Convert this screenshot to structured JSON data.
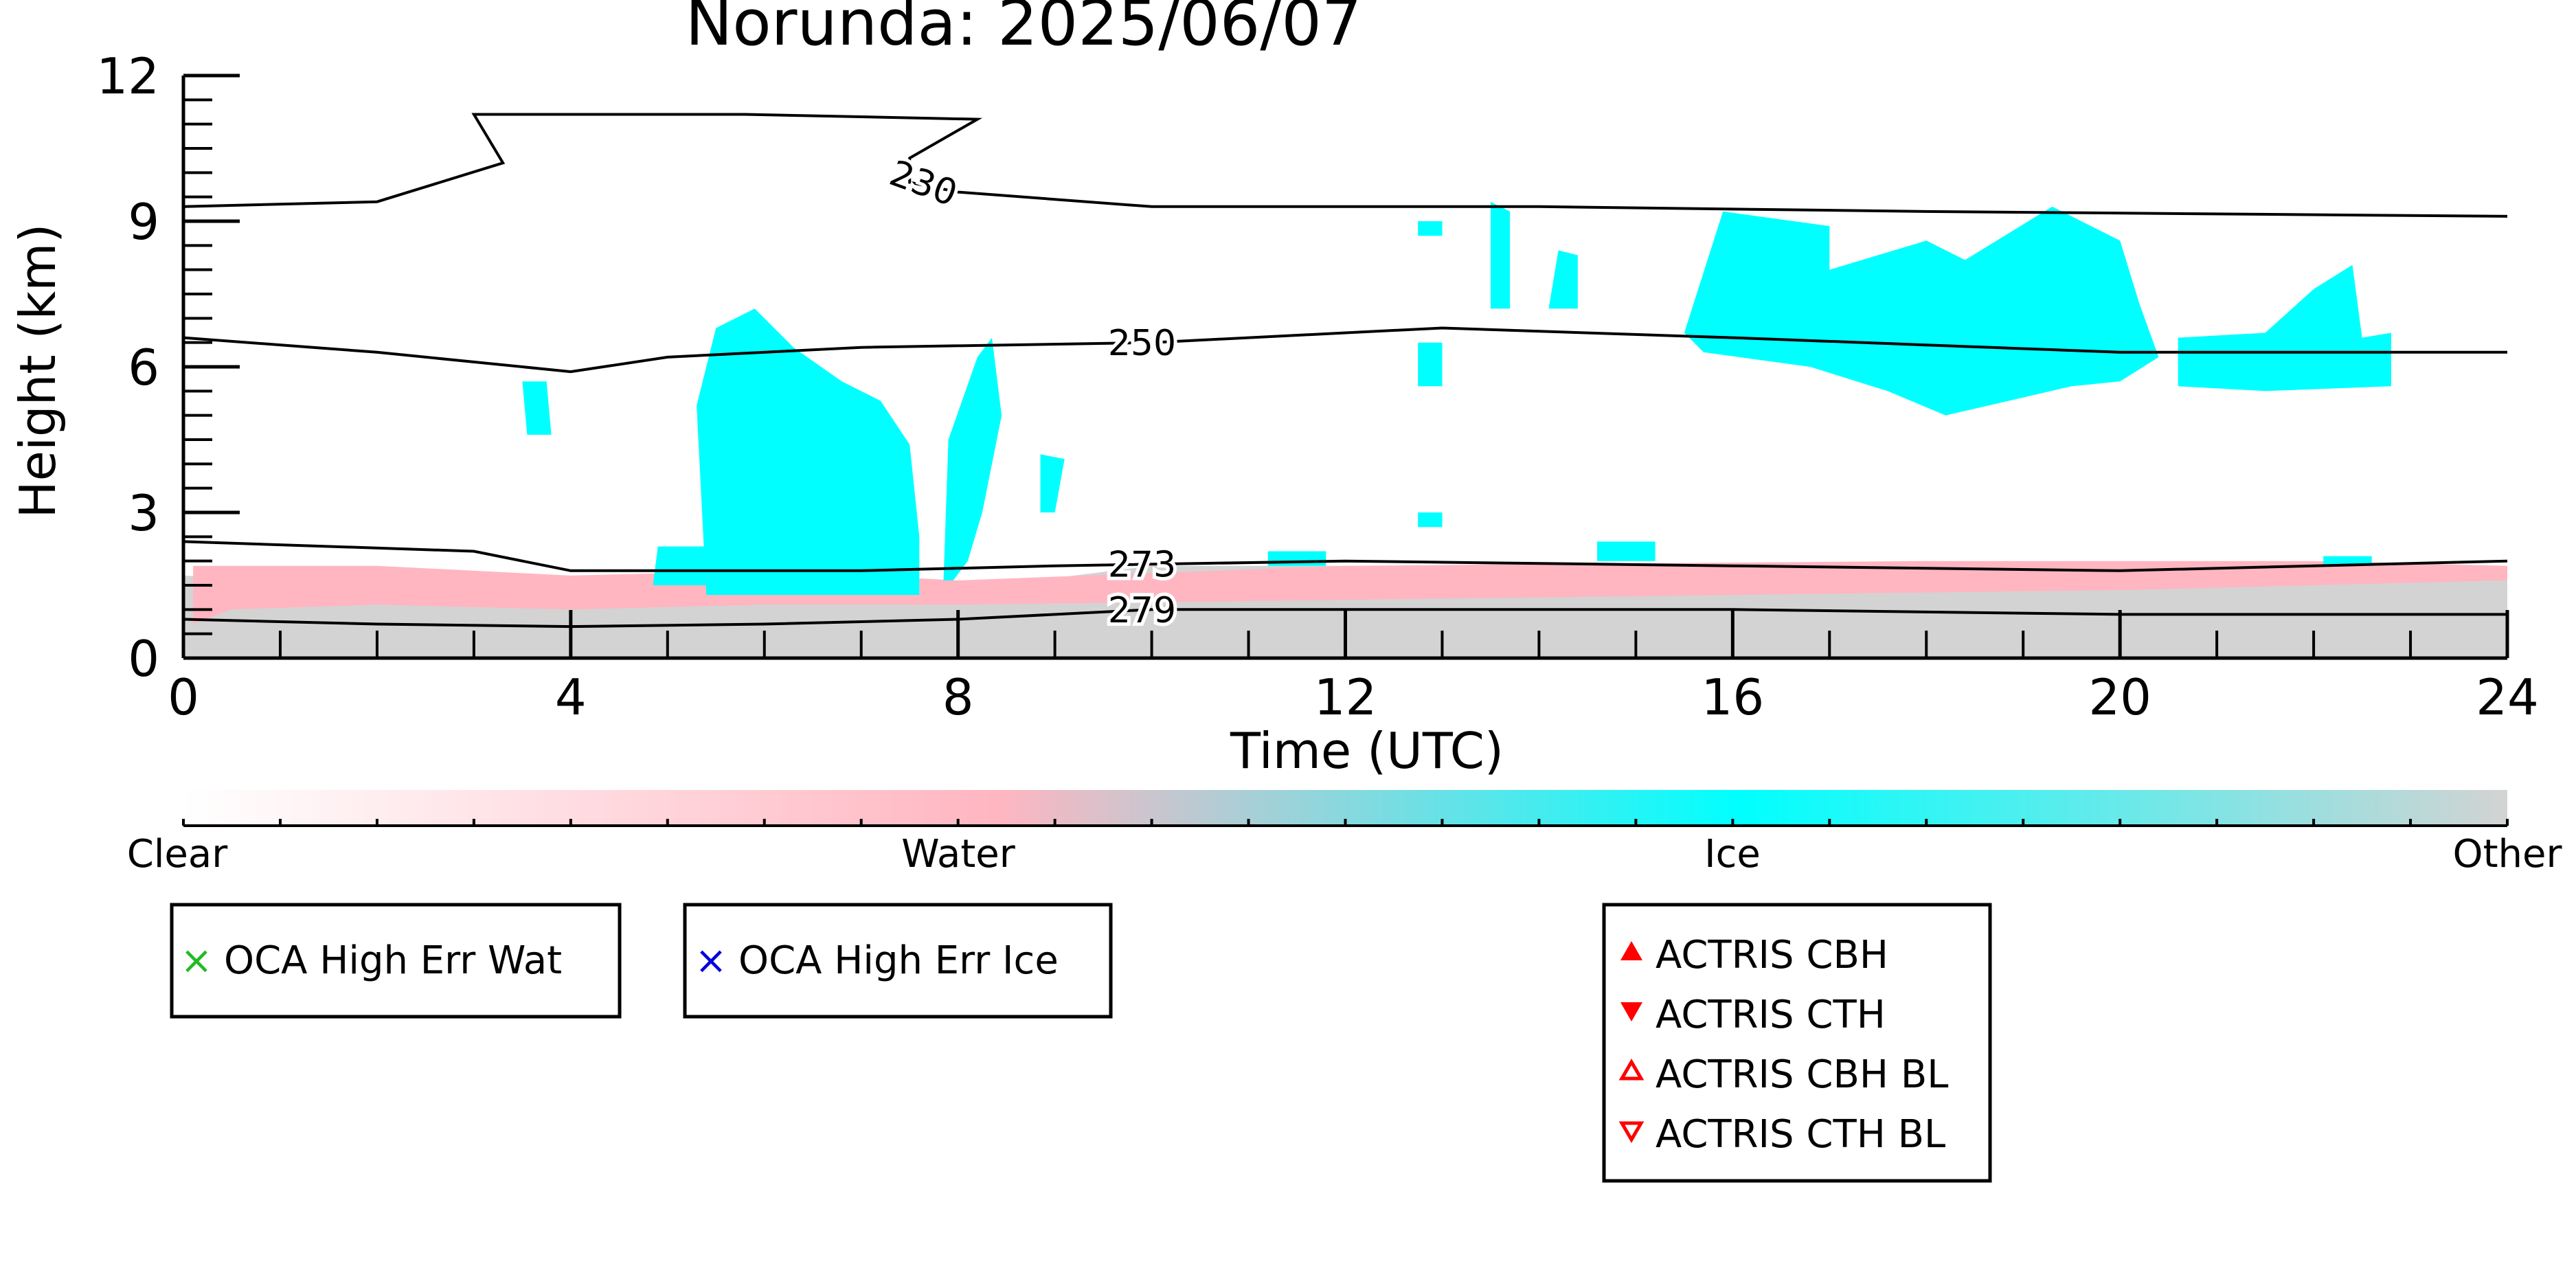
{
  "chart_data": {
    "type": "heatmap",
    "title": "Norunda: 2025/06/07",
    "xlabel": "Time (UTC)",
    "ylabel": "Height (km)",
    "xlim": [
      0,
      24
    ],
    "ylim": [
      0,
      12
    ],
    "x_ticks": [
      0,
      4,
      8,
      12,
      16,
      20,
      24
    ],
    "y_ticks": [
      0,
      3,
      6,
      9,
      12
    ],
    "classes": [
      {
        "name": "Clear",
        "color": "#ffffff"
      },
      {
        "name": "Water",
        "color": "#ffb6c1"
      },
      {
        "name": "Ice",
        "color": "#00ffff"
      },
      {
        "name": "Other",
        "color": "#d3d3d3"
      }
    ],
    "contours": [
      {
        "label": "230",
        "points": [
          [
            0,
            9.3
          ],
          [
            2,
            9.4
          ],
          [
            3.3,
            10.2
          ],
          [
            3,
            11.2
          ],
          [
            5.8,
            11.2
          ],
          [
            8.2,
            11.1
          ],
          [
            7.5,
            10.3
          ],
          [
            7.5,
            9.8
          ],
          [
            8,
            9.6
          ],
          [
            10,
            9.3
          ],
          [
            14,
            9.3
          ],
          [
            18,
            9.2
          ],
          [
            24,
            9.1
          ]
        ]
      },
      {
        "label": "250",
        "points": [
          [
            0,
            6.6
          ],
          [
            2,
            6.3
          ],
          [
            4,
            5.9
          ],
          [
            5,
            6.2
          ],
          [
            7,
            6.4
          ],
          [
            10,
            6.5
          ],
          [
            12,
            6.7
          ],
          [
            13,
            6.8
          ],
          [
            16,
            6.6
          ],
          [
            20,
            6.3
          ],
          [
            24,
            6.3
          ]
        ]
      },
      {
        "label": "273",
        "points": [
          [
            0,
            2.4
          ],
          [
            3,
            2.2
          ],
          [
            4,
            1.8
          ],
          [
            7,
            1.8
          ],
          [
            9,
            1.9
          ],
          [
            12,
            2.0
          ],
          [
            16,
            1.9
          ],
          [
            20,
            1.8
          ],
          [
            24,
            2.0
          ]
        ]
      },
      {
        "label": "279",
        "points": [
          [
            0,
            0.8
          ],
          [
            2,
            0.7
          ],
          [
            4,
            0.65
          ],
          [
            6,
            0.7
          ],
          [
            8,
            0.8
          ],
          [
            10,
            1.0
          ],
          [
            12,
            1.0
          ],
          [
            16,
            1.0
          ],
          [
            20,
            0.9
          ],
          [
            24,
            0.9
          ]
        ]
      }
    ],
    "regions": [
      {
        "class": "Other",
        "points": [
          [
            0,
            0
          ],
          [
            0,
            1.7
          ],
          [
            1,
            1.6
          ],
          [
            4,
            1.5
          ],
          [
            8,
            1.4
          ],
          [
            10,
            1.9
          ],
          [
            12,
            1.9
          ],
          [
            18,
            1.8
          ],
          [
            22,
            1.8
          ],
          [
            24,
            1.8
          ],
          [
            24,
            0
          ]
        ]
      },
      {
        "class": "Water",
        "points": [
          [
            0.1,
            0.7
          ],
          [
            0.1,
            1.9
          ],
          [
            2,
            1.9
          ],
          [
            4,
            1.7
          ],
          [
            6,
            1.8
          ],
          [
            8,
            1.6
          ],
          [
            12,
            1.9
          ],
          [
            18,
            2.0
          ],
          [
            22,
            2.0
          ],
          [
            24,
            1.9
          ],
          [
            24,
            1.6
          ],
          [
            20,
            1.4
          ],
          [
            16,
            1.3
          ],
          [
            12,
            1.2
          ],
          [
            8,
            1.1
          ],
          [
            6,
            1.1
          ],
          [
            4,
            1.0
          ],
          [
            2,
            1.1
          ],
          [
            0.5,
            1.0
          ]
        ]
      },
      {
        "class": "Ice",
        "points": [
          [
            5.4,
            1.3
          ],
          [
            5.3,
            5.2
          ],
          [
            5.5,
            6.8
          ],
          [
            5.9,
            7.2
          ],
          [
            6.3,
            6.4
          ],
          [
            6.8,
            5.7
          ],
          [
            7.2,
            5.3
          ],
          [
            7.5,
            4.4
          ],
          [
            7.6,
            2.5
          ],
          [
            7.6,
            1.3
          ]
        ]
      },
      {
        "class": "Ice",
        "points": [
          [
            4.85,
            1.5
          ],
          [
            4.9,
            2.3
          ],
          [
            5.4,
            2.3
          ],
          [
            5.4,
            1.5
          ]
        ]
      },
      {
        "class": "Ice",
        "points": [
          [
            7.85,
            1.6
          ],
          [
            7.9,
            4.5
          ],
          [
            8.2,
            6.2
          ],
          [
            8.35,
            6.6
          ],
          [
            8.45,
            5.0
          ],
          [
            8.25,
            3.0
          ],
          [
            8.1,
            2.0
          ],
          [
            7.95,
            1.6
          ]
        ]
      },
      {
        "class": "Ice",
        "points": [
          [
            8.85,
            3.0
          ],
          [
            8.85,
            4.2
          ],
          [
            9.1,
            4.1
          ],
          [
            9.0,
            3.0
          ]
        ]
      },
      {
        "class": "Ice",
        "points": [
          [
            3.55,
            4.6
          ],
          [
            3.5,
            5.7
          ],
          [
            3.75,
            5.7
          ],
          [
            3.8,
            4.6
          ]
        ]
      },
      {
        "class": "Ice",
        "points": [
          [
            12.75,
            5.6
          ],
          [
            12.75,
            6.5
          ],
          [
            13.0,
            6.5
          ],
          [
            13.0,
            5.6
          ]
        ]
      },
      {
        "class": "Ice",
        "points": [
          [
            12.75,
            8.7
          ],
          [
            12.75,
            9.0
          ],
          [
            13.0,
            9.0
          ],
          [
            13.0,
            8.7
          ]
        ]
      },
      {
        "class": "Ice",
        "points": [
          [
            12.75,
            2.7
          ],
          [
            12.75,
            3.0
          ],
          [
            13.0,
            3.0
          ],
          [
            13.0,
            2.7
          ]
        ]
      },
      {
        "class": "Ice",
        "points": [
          [
            13.5,
            7.2
          ],
          [
            13.5,
            9.4
          ],
          [
            13.7,
            9.2
          ],
          [
            13.7,
            7.2
          ]
        ]
      },
      {
        "class": "Ice",
        "points": [
          [
            14.1,
            7.2
          ],
          [
            14.2,
            8.4
          ],
          [
            14.4,
            8.3
          ],
          [
            14.4,
            7.2
          ]
        ]
      },
      {
        "class": "Ice",
        "points": [
          [
            14.6,
            2.0
          ],
          [
            14.6,
            2.4
          ],
          [
            15.2,
            2.4
          ],
          [
            15.2,
            2.0
          ]
        ]
      },
      {
        "class": "Ice",
        "points": [
          [
            15.5,
            6.7
          ],
          [
            15.9,
            9.2
          ],
          [
            17.0,
            8.9
          ],
          [
            17.0,
            8.0
          ],
          [
            18.0,
            8.6
          ],
          [
            18.4,
            8.2
          ],
          [
            19.3,
            9.3
          ],
          [
            20.0,
            8.6
          ],
          [
            20.2,
            7.3
          ],
          [
            20.4,
            6.2
          ],
          [
            20.0,
            5.7
          ],
          [
            19.5,
            5.6
          ],
          [
            18.2,
            5.0
          ],
          [
            17.6,
            5.5
          ],
          [
            16.8,
            6.0
          ],
          [
            15.7,
            6.3
          ]
        ]
      },
      {
        "class": "Ice",
        "points": [
          [
            20.6,
            5.6
          ],
          [
            20.6,
            6.6
          ],
          [
            21.5,
            6.7
          ],
          [
            22.0,
            7.6
          ],
          [
            22.4,
            8.1
          ],
          [
            22.5,
            6.6
          ],
          [
            22.8,
            6.7
          ],
          [
            22.8,
            5.6
          ],
          [
            21.5,
            5.5
          ]
        ]
      },
      {
        "class": "Ice",
        "points": [
          [
            11.2,
            1.9
          ],
          [
            11.2,
            2.2
          ],
          [
            11.8,
            2.2
          ],
          [
            11.8,
            1.9
          ]
        ]
      },
      {
        "class": "Ice",
        "points": [
          [
            22.1,
            1.9
          ],
          [
            22.1,
            2.1
          ],
          [
            22.6,
            2.1
          ],
          [
            22.6,
            1.9
          ]
        ]
      }
    ],
    "colorbar": {
      "labels": [
        "Clear",
        "Water",
        "Ice",
        "Other"
      ]
    },
    "legend": [
      {
        "label": "OCA High Err Wat",
        "marker": "x",
        "color": "#22bb22"
      },
      {
        "label": "OCA High Err Ice",
        "marker": "x",
        "color": "#0000dd"
      },
      {
        "label": "ACTRIS CBH",
        "marker": "triangle-up-filled",
        "color": "#ff0000"
      },
      {
        "label": "ACTRIS CTH",
        "marker": "triangle-down-filled",
        "color": "#ff0000"
      },
      {
        "label": "ACTRIS CBH BL",
        "marker": "triangle-up-open",
        "color": "#ff0000"
      },
      {
        "label": "ACTRIS CTH BL",
        "marker": "triangle-down-open",
        "color": "#ff0000"
      }
    ]
  }
}
